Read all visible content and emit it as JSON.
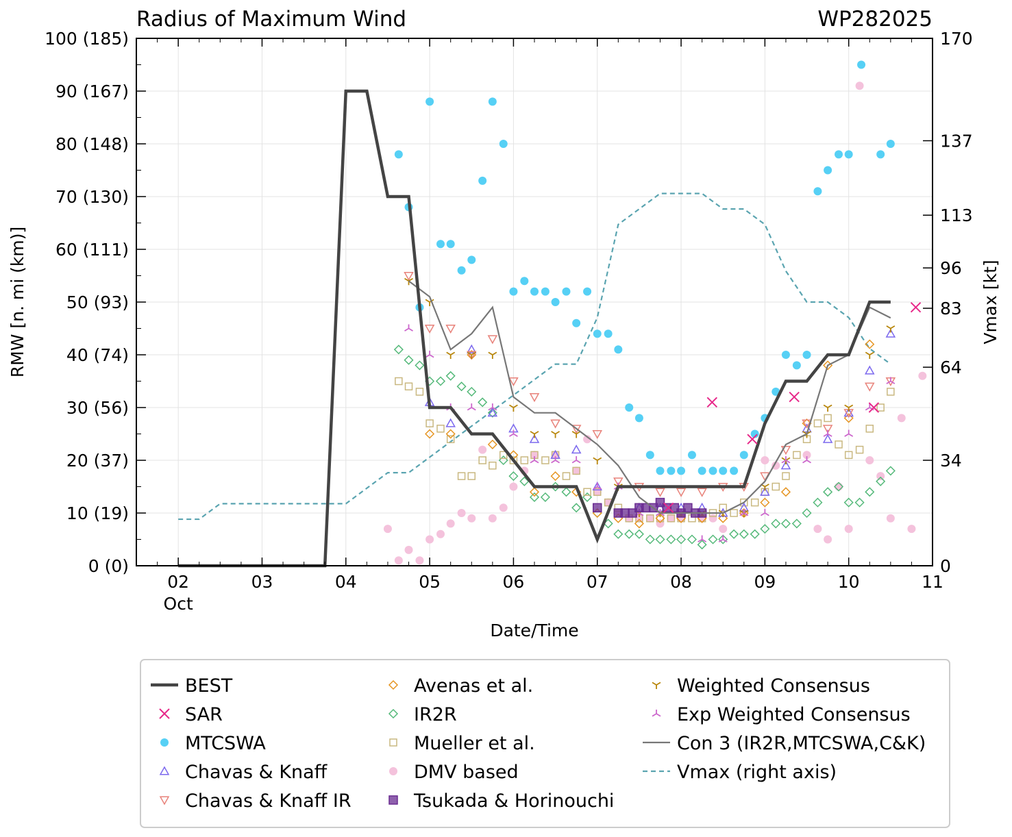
{
  "chart_data": {
    "type": "scatter",
    "title": "Radius of Maximum Wind",
    "storm_id": "WP282025",
    "xlabel": "Date/Time",
    "ylabel": "RMW [n. mi (km)]",
    "ylabel_right": "Vmax [kt]",
    "xlim": [
      1.5,
      11.0
    ],
    "ylim": [
      0,
      100
    ],
    "ylim_right": [
      0,
      170
    ],
    "x_ticks": [
      {
        "x": 2,
        "label": "02",
        "sublabel": "Oct"
      },
      {
        "x": 3,
        "label": "03"
      },
      {
        "x": 4,
        "label": "04"
      },
      {
        "x": 5,
        "label": "05"
      },
      {
        "x": 6,
        "label": "06"
      },
      {
        "x": 7,
        "label": "07"
      },
      {
        "x": 8,
        "label": "08"
      },
      {
        "x": 9,
        "label": "09"
      },
      {
        "x": 10,
        "label": "10"
      },
      {
        "x": 11,
        "label": "11"
      }
    ],
    "y_ticks": [
      {
        "y": 0,
        "label": "0 (0)"
      },
      {
        "y": 10,
        "label": "10 (19)"
      },
      {
        "y": 20,
        "label": "20 (37)"
      },
      {
        "y": 30,
        "label": "30 (56)"
      },
      {
        "y": 40,
        "label": "40 (74)"
      },
      {
        "y": 50,
        "label": "50 (93)"
      },
      {
        "y": 60,
        "label": "60 (111)"
      },
      {
        "y": 70,
        "label": "70 (130)"
      },
      {
        "y": 80,
        "label": "80 (148)"
      },
      {
        "y": 90,
        "label": "90 (167)"
      },
      {
        "y": 100,
        "label": "100 (185)"
      }
    ],
    "y_ticks_right": [
      {
        "v": 0,
        "label": "0"
      },
      {
        "v": 34,
        "label": "34"
      },
      {
        "v": 64,
        "label": "64"
      },
      {
        "v": 83,
        "label": "83"
      },
      {
        "v": 96,
        "label": "96"
      },
      {
        "v": 113,
        "label": "113"
      },
      {
        "v": 137,
        "label": "137"
      },
      {
        "v": 170,
        "label": "170"
      }
    ],
    "series": [
      {
        "name": "BEST",
        "label": "BEST",
        "style": "line",
        "color": "#444444",
        "x": [
          2.0,
          3.75,
          4.0,
          4.25,
          4.5,
          4.75,
          5.0,
          5.25,
          5.5,
          5.75,
          6.0,
          6.25,
          6.5,
          6.75,
          7.0,
          7.25,
          7.5,
          7.75,
          8.0,
          8.25,
          8.5,
          8.75,
          9.0,
          9.25,
          9.5,
          9.75,
          10.0,
          10.25,
          10.5
        ],
        "y": [
          0,
          0,
          90,
          90,
          70,
          70,
          30,
          30,
          25,
          25,
          20,
          15,
          15,
          15,
          5,
          15,
          15,
          15,
          15,
          15,
          15,
          15,
          27,
          35,
          35,
          40,
          40,
          50,
          50
        ]
      },
      {
        "name": "SAR",
        "label": "SAR",
        "style": "marker",
        "marker": "x",
        "color": "#e7298a",
        "x": [
          7.85,
          8.37,
          8.85,
          9.35,
          10.3,
          10.8
        ],
        "y": [
          11,
          31,
          24,
          32,
          30,
          49
        ]
      },
      {
        "name": "MTCSWA",
        "label": "MTCSWA",
        "style": "marker",
        "marker": "circle",
        "color": "#56d0f5",
        "x": [
          4.63,
          4.75,
          4.88,
          5.0,
          5.13,
          5.25,
          5.38,
          5.5,
          5.63,
          5.75,
          5.88,
          6.0,
          6.13,
          6.25,
          6.38,
          6.5,
          6.63,
          6.75,
          6.88,
          7.0,
          7.13,
          7.25,
          7.38,
          7.5,
          7.63,
          7.75,
          7.88,
          8.0,
          8.13,
          8.25,
          8.38,
          8.5,
          8.63,
          8.75,
          8.88,
          9.0,
          9.13,
          9.25,
          9.38,
          9.5,
          9.63,
          9.75,
          9.88,
          10.0,
          10.15,
          10.38,
          10.5
        ],
        "y": [
          78,
          68,
          49,
          88,
          61,
          61,
          56,
          58,
          73,
          88,
          80,
          52,
          54,
          52,
          52,
          50,
          52,
          46,
          52,
          44,
          44,
          41,
          30,
          28,
          21,
          18,
          18,
          18,
          21,
          18,
          18,
          18,
          18,
          21,
          25,
          28,
          33,
          40,
          38,
          40,
          71,
          75,
          78,
          78,
          95,
          78,
          80
        ]
      },
      {
        "name": "Chavas & Knaff",
        "label": "Chavas & Knaff",
        "style": "marker",
        "marker": "tri_up",
        "color": "#7b68ee",
        "x": [
          5.0,
          5.25,
          5.5,
          5.75,
          6.0,
          6.25,
          6.5,
          6.75,
          7.0,
          7.5,
          7.75,
          8.0,
          8.25,
          8.5,
          8.75,
          9.0,
          9.25,
          9.5,
          9.75,
          10.0,
          10.25,
          10.5
        ],
        "y": [
          31,
          27,
          41,
          29,
          26,
          24,
          21,
          22,
          15,
          11,
          11,
          11,
          11,
          10,
          11,
          14,
          19,
          26,
          24,
          29,
          37,
          44
        ]
      },
      {
        "name": "Chavas & Knaff IR",
        "label": "Chavas & Knaff IR",
        "style": "marker",
        "marker": "tri_down",
        "color": "#e8827a",
        "x": [
          4.75,
          5.0,
          5.25,
          5.5,
          5.75,
          6.0,
          6.25,
          6.5,
          6.75,
          7.0,
          7.25,
          7.5,
          7.75,
          8.0,
          8.25,
          8.5,
          8.75,
          9.0,
          9.25,
          9.5,
          9.75,
          10.0,
          10.25,
          10.5
        ],
        "y": [
          55,
          45,
          45,
          40,
          43,
          35,
          32,
          27,
          26,
          25,
          16,
          15,
          14,
          14,
          14,
          15,
          15,
          17,
          22,
          27,
          26,
          29,
          34,
          35
        ]
      },
      {
        "name": "Avenas et al.",
        "label": "Avenas et al.",
        "style": "marker",
        "marker": "diamond",
        "color": "#e69522",
        "x": [
          5.0,
          5.25,
          5.5,
          5.75,
          6.0,
          6.25,
          6.5,
          6.75,
          7.0,
          7.25,
          7.5,
          7.75,
          8.0,
          8.25,
          8.5,
          8.75,
          9.0,
          9.25,
          9.5,
          9.75,
          10.0,
          10.25
        ],
        "y": [
          25,
          25,
          40,
          23,
          21,
          14,
          17,
          14,
          10,
          9,
          8,
          9,
          9,
          9,
          9,
          10,
          12,
          14,
          27,
          38,
          28,
          42
        ]
      },
      {
        "name": "IR2R",
        "label": "IR2R",
        "style": "marker",
        "marker": "diamond",
        "color": "#55b97a",
        "x": [
          4.63,
          4.75,
          4.88,
          5.0,
          5.13,
          5.25,
          5.38,
          5.5,
          5.63,
          5.75,
          5.88,
          6.0,
          6.13,
          6.25,
          6.38,
          6.5,
          6.63,
          6.75,
          6.88,
          7.0,
          7.13,
          7.25,
          7.38,
          7.5,
          7.63,
          7.75,
          7.88,
          8.0,
          8.13,
          8.25,
          8.38,
          8.5,
          8.63,
          8.75,
          8.88,
          9.0,
          9.13,
          9.25,
          9.38,
          9.5,
          9.63,
          9.75,
          9.88,
          10.0,
          10.13,
          10.25,
          10.38,
          10.5
        ],
        "y": [
          41,
          39,
          38,
          35,
          35,
          36,
          34,
          33,
          31,
          29,
          20,
          17,
          16,
          13,
          13,
          15,
          14,
          11,
          13,
          10,
          8,
          6,
          6,
          6,
          5,
          5,
          5,
          5,
          5,
          4,
          5,
          5,
          6,
          6,
          6,
          7,
          8,
          8,
          8,
          10,
          12,
          14,
          15,
          12,
          12,
          14,
          16,
          18
        ]
      },
      {
        "name": "Mueller et al.",
        "label": "Mueller et al.",
        "style": "marker",
        "marker": "square",
        "color": "#c9b880",
        "x": [
          4.63,
          4.75,
          4.88,
          5.0,
          5.13,
          5.25,
          5.38,
          5.5,
          5.63,
          5.75,
          5.88,
          6.0,
          6.13,
          6.25,
          6.38,
          6.5,
          6.63,
          6.75,
          6.88,
          7.0,
          7.13,
          7.25,
          7.38,
          7.5,
          7.63,
          7.75,
          7.88,
          8.0,
          8.13,
          8.25,
          8.38,
          8.5,
          8.63,
          8.75,
          8.88,
          9.0,
          9.13,
          9.25,
          9.38,
          9.5,
          9.63,
          9.75,
          9.88,
          10.0,
          10.13,
          10.25,
          10.38,
          10.5
        ],
        "y": [
          35,
          34,
          33,
          27,
          26,
          24,
          17,
          17,
          20,
          19,
          21,
          20,
          20,
          21,
          20,
          21,
          17,
          18,
          14,
          14,
          12,
          11,
          9,
          9,
          9,
          9,
          9,
          9,
          9,
          9,
          10,
          11,
          10,
          12,
          12,
          14,
          15,
          17,
          21,
          24,
          27,
          28,
          23,
          21,
          22,
          26,
          30,
          33
        ]
      },
      {
        "name": "DMV based",
        "label": "DMV based",
        "style": "marker",
        "marker": "circle",
        "color": "#f4c2dc",
        "x": [
          4.5,
          4.63,
          4.75,
          4.88,
          5.0,
          5.13,
          5.25,
          5.38,
          5.5,
          5.63,
          5.75,
          5.88,
          6.0,
          6.13,
          6.25,
          6.5,
          6.75,
          6.88,
          7.0,
          7.13,
          7.25,
          7.38,
          7.5,
          7.63,
          7.75,
          7.88,
          8.0,
          8.25,
          8.38,
          8.5,
          8.75,
          9.0,
          9.13,
          9.5,
          9.63,
          9.75,
          9.88,
          10.0,
          10.13,
          10.25,
          10.38,
          10.5,
          10.63,
          10.75,
          10.88
        ],
        "y": [
          7,
          1,
          3,
          1,
          5,
          6,
          8,
          10,
          9,
          22,
          9,
          11,
          15,
          18,
          21,
          21,
          18,
          24,
          14,
          12,
          10,
          9,
          9,
          9,
          8,
          9,
          9,
          9,
          9,
          7,
          10,
          20,
          19,
          21,
          7,
          5,
          15,
          7,
          91,
          20,
          17,
          9,
          28,
          7,
          36
        ]
      },
      {
        "name": "Tsukada & Horinouchi",
        "label": "Tsukada & Horinouchi",
        "style": "marker",
        "marker": "square_filled",
        "color": "#6a2c91",
        "x": [
          7.0,
          7.25,
          7.33,
          7.42,
          7.5,
          7.58,
          7.67,
          7.75,
          7.83,
          7.92,
          8.0,
          8.08,
          8.17,
          8.25
        ],
        "y": [
          11,
          10,
          10,
          10,
          11,
          11,
          11,
          12,
          11,
          11,
          10,
          11,
          10,
          10
        ]
      },
      {
        "name": "Weighted Consensus",
        "label": "Weighted Consensus",
        "style": "marker",
        "marker": "tri_y",
        "color": "#b8860b",
        "x": [
          4.75,
          5.0,
          5.25,
          5.5,
          5.75,
          6.0,
          6.25,
          6.5,
          6.75,
          7.0,
          7.25,
          7.5,
          7.75,
          8.0,
          8.25,
          8.5,
          8.75,
          9.0,
          9.25,
          9.5,
          9.75,
          10.0,
          10.25,
          10.5
        ],
        "y": [
          54,
          50,
          40,
          40,
          40,
          30,
          25,
          25,
          25,
          20,
          15,
          10,
          10,
          10,
          10,
          10,
          10,
          15,
          20,
          25,
          30,
          30,
          40,
          45
        ]
      },
      {
        "name": "Exp Weighted Consensus",
        "label": "Exp Weighted Consensus",
        "style": "marker",
        "marker": "tri_inv",
        "color": "#cc66cc",
        "x": [
          4.75,
          5.0,
          5.25,
          5.5,
          5.75,
          6.0,
          6.25,
          6.5,
          6.75,
          7.0,
          7.25,
          7.5,
          7.75,
          8.0,
          8.25,
          8.5,
          8.75,
          9.0,
          9.25,
          9.5,
          9.75,
          10.0,
          10.25,
          10.5
        ],
        "y": [
          45,
          40,
          30,
          30,
          30,
          25,
          20,
          20,
          20,
          15,
          15,
          10,
          10,
          10,
          5,
          5,
          10,
          10,
          20,
          20,
          25,
          25,
          30,
          35
        ]
      },
      {
        "name": "Con 3 (IR2R,MTCSWA,C&K)",
        "label": "Con 3 (IR2R,MTCSWA,C&K)",
        "style": "line",
        "color": "#777777",
        "x": [
          4.75,
          5.0,
          5.25,
          5.5,
          5.75,
          6.0,
          6.25,
          6.5,
          6.75,
          7.0,
          7.25,
          7.5,
          7.75,
          8.0,
          8.25,
          8.5,
          8.75,
          9.0,
          9.25,
          9.5,
          9.75,
          10.0,
          10.25,
          10.5
        ],
        "y": [
          54,
          51,
          41,
          44,
          49,
          32,
          29,
          29,
          26,
          23,
          19,
          13,
          10,
          10,
          10,
          10,
          12,
          16,
          23,
          25,
          38,
          40,
          49,
          47
        ]
      },
      {
        "name": "Vmax",
        "label": "Vmax (right axis)",
        "style": "dashed",
        "axis": "right",
        "color": "#5aa4b0",
        "x": [
          2.0,
          2.25,
          2.5,
          2.75,
          3.0,
          3.25,
          3.5,
          3.75,
          4.0,
          4.25,
          4.5,
          4.75,
          5.0,
          5.25,
          5.5,
          5.75,
          6.0,
          6.25,
          6.5,
          6.75,
          7.0,
          7.25,
          7.5,
          7.75,
          8.0,
          8.25,
          8.5,
          8.75,
          9.0,
          9.25,
          9.5,
          9.75,
          10.0,
          10.25,
          10.5
        ],
        "y": [
          15,
          15,
          20,
          20,
          20,
          20,
          20,
          20,
          20,
          25,
          30,
          30,
          35,
          40,
          45,
          50,
          55,
          60,
          65,
          65,
          80,
          110,
          115,
          120,
          120,
          120,
          115,
          115,
          110,
          95,
          85,
          85,
          80,
          70,
          65
        ]
      }
    ],
    "legend": {
      "placement": "bottom-outside",
      "columns": 3
    }
  }
}
